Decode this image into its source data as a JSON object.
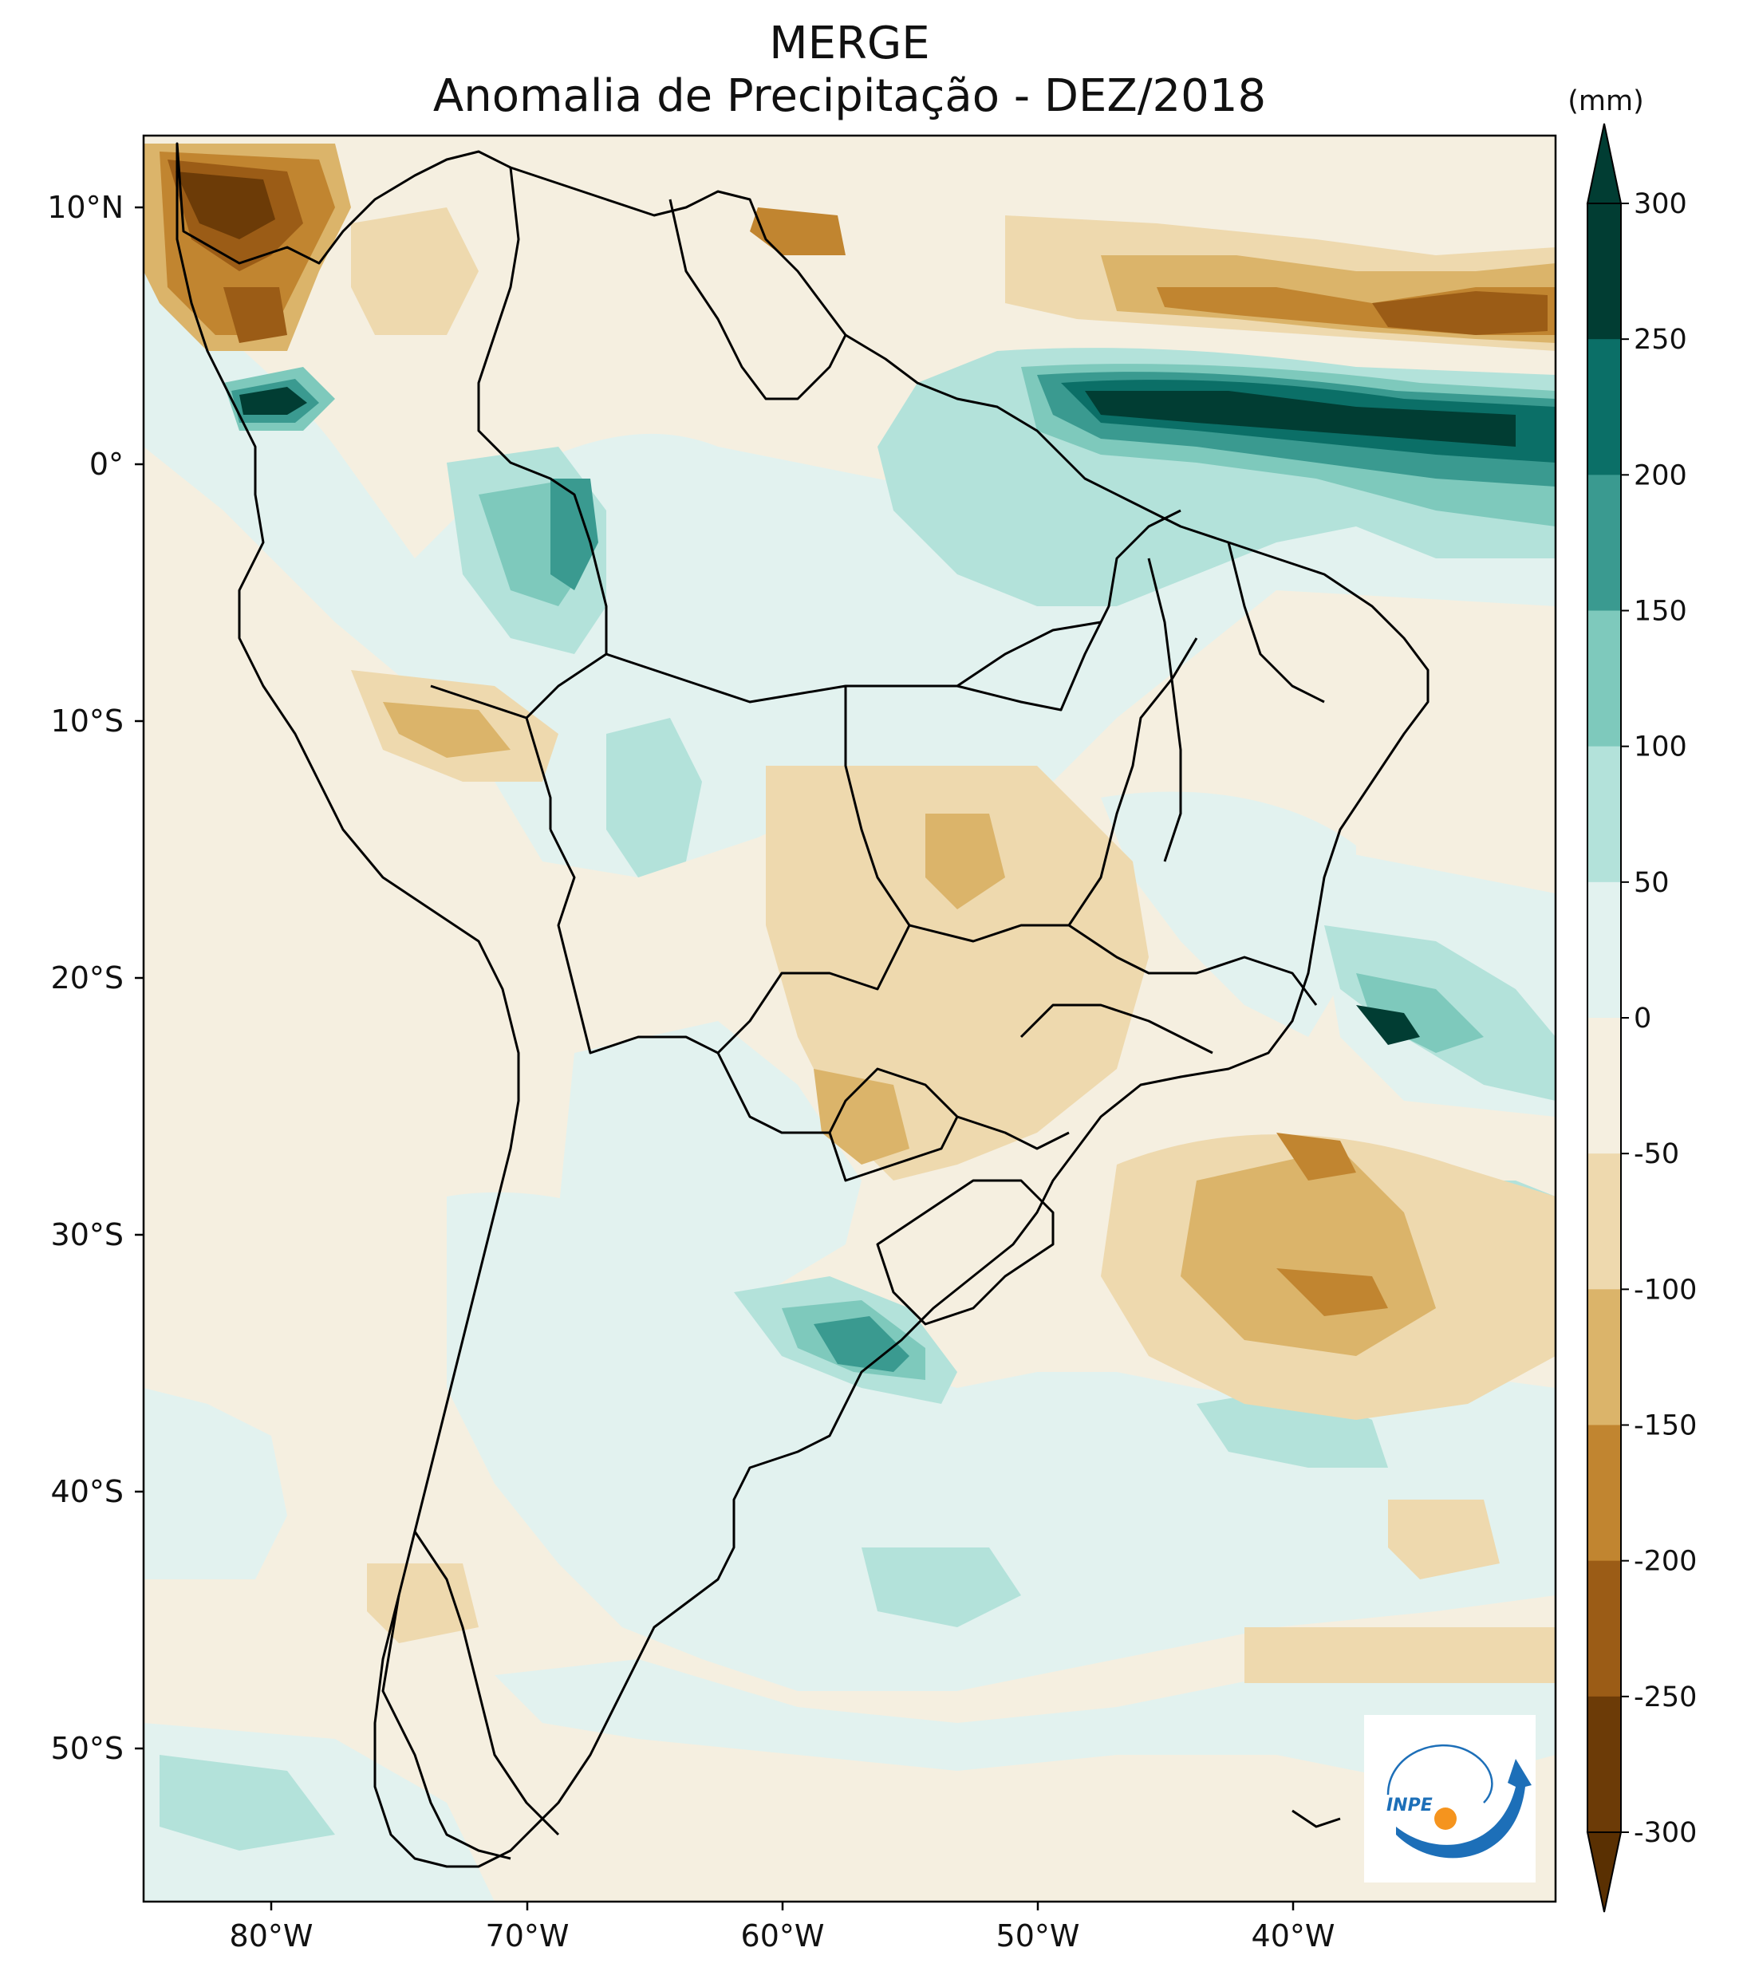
{
  "title": {
    "line1": "MERGE",
    "line2": "Anomalia de Precipitação - DEZ/2018"
  },
  "map": {
    "region": "South America",
    "variable": "Precipitation anomaly",
    "longitude_ticks": [
      "80°W",
      "70°W",
      "60°W",
      "50°W",
      "40°W"
    ],
    "latitude_ticks": [
      "10°N",
      "0°",
      "10°S",
      "20°S",
      "30°S",
      "40°S",
      "50°S"
    ]
  },
  "colorbar": {
    "units": "(mm)",
    "ticks": [
      "300",
      "250",
      "200",
      "150",
      "100",
      "50",
      "0",
      "-50",
      "-100",
      "-150",
      "-200",
      "-250",
      "-300"
    ],
    "colors": [
      "#013d33",
      "#0b6f67",
      "#3a9a90",
      "#7ec9bc",
      "#b3e2da",
      "#e2f2ef",
      "#f5efe0",
      "#eed9ae",
      "#dbb46a",
      "#c18530",
      "#9b5c16",
      "#6c3b07",
      "#5a3002"
    ],
    "extend": "both"
  },
  "logo": {
    "text": "INPE",
    "accent_blue": "#1d6fb8",
    "accent_orange": "#f5941e"
  }
}
